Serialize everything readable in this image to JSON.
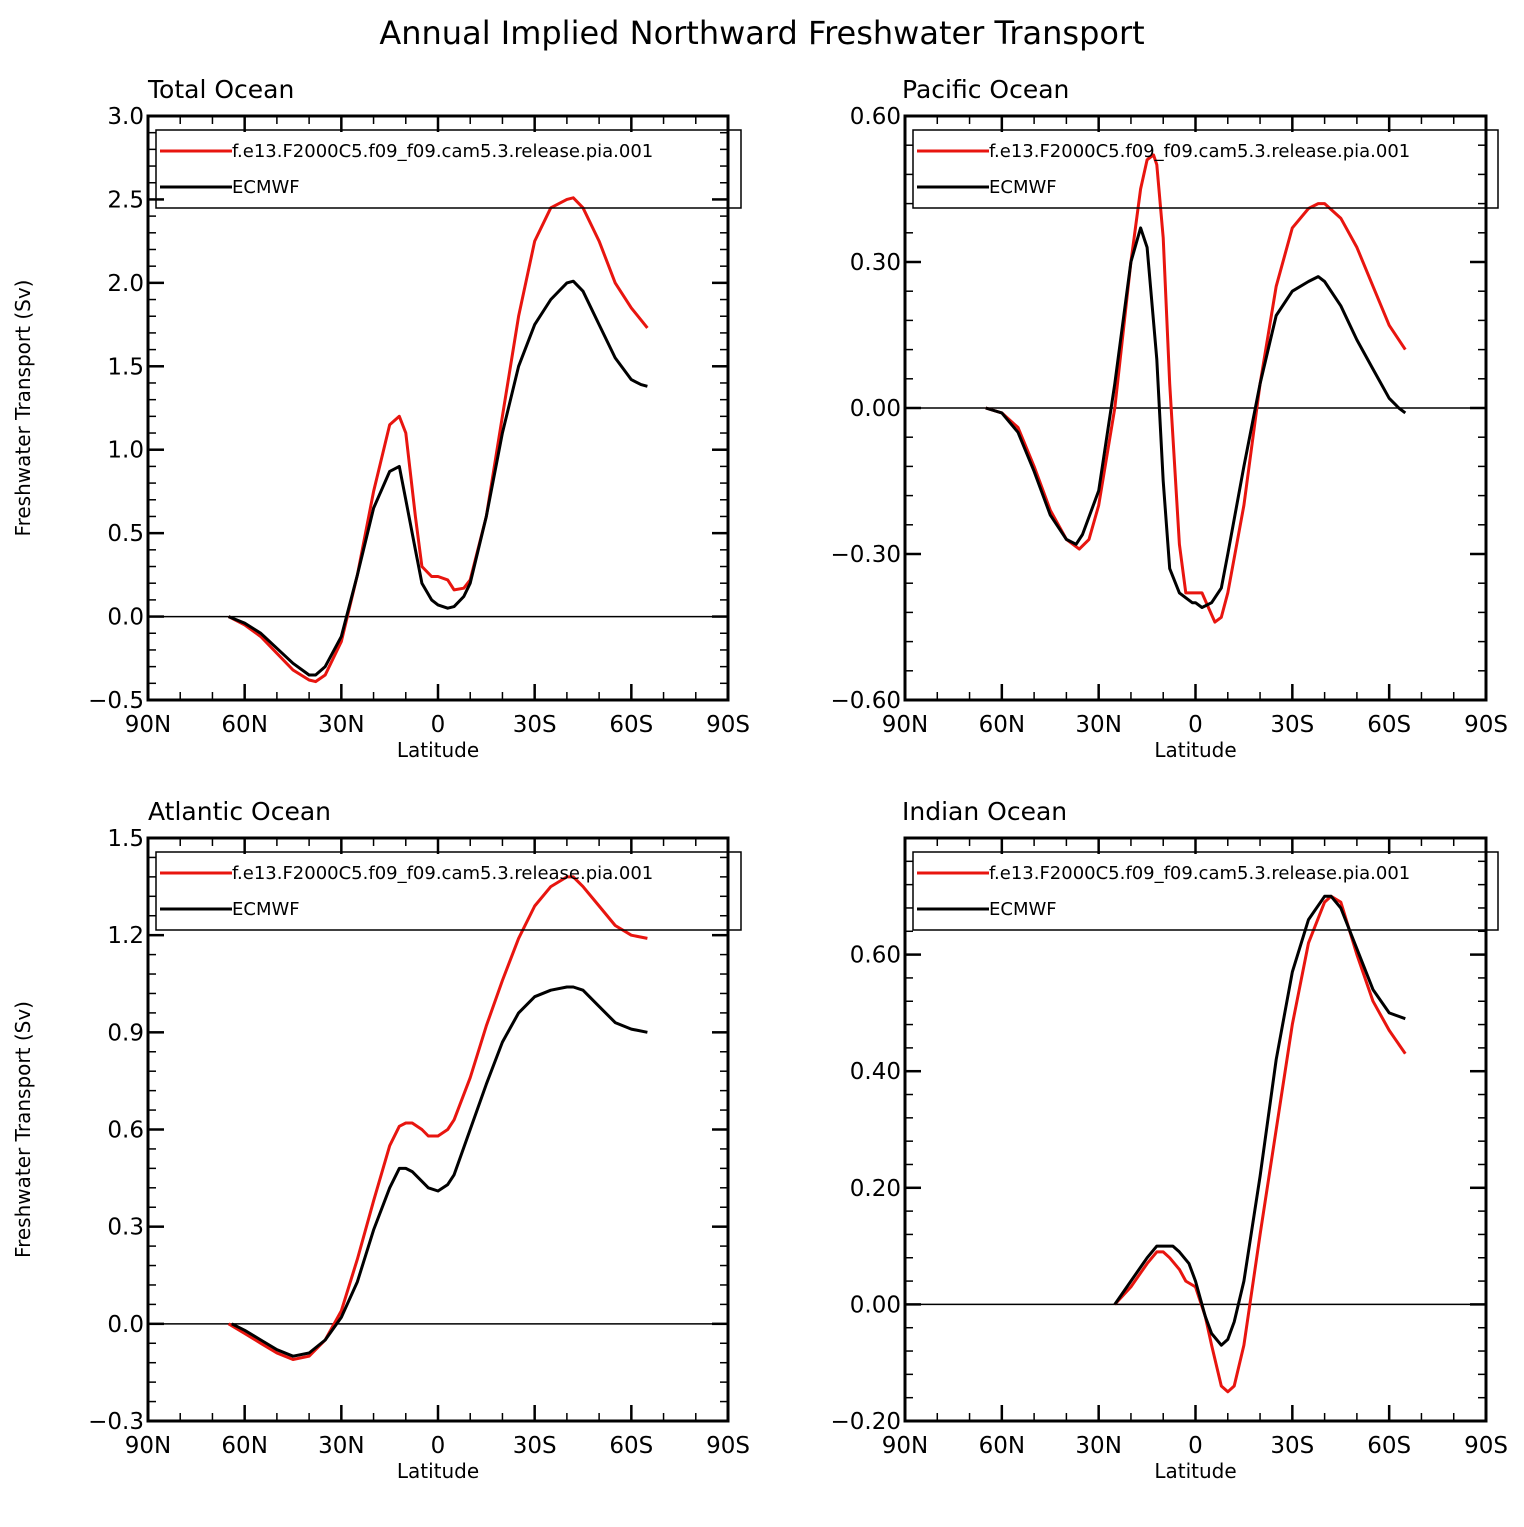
{
  "figure_title": "Annual Implied Northward Freshwater Transport",
  "colors": {
    "model": "#e8150f",
    "obs": "#000000"
  },
  "chart_data": [
    {
      "type": "line",
      "title": "Total Ocean",
      "xlabel": "Latitude",
      "ylabel": "Freshwater Transport (Sv)",
      "xlim": [
        90,
        -90
      ],
      "ylim": [
        -0.5,
        3.0
      ],
      "yticks": [
        -0.5,
        0.0,
        0.5,
        1.0,
        1.5,
        2.0,
        2.5,
        3.0
      ],
      "ytick_labels": [
        "−0.5",
        "0.0",
        "0.5",
        "1.0",
        "1.5",
        "2.0",
        "2.5",
        "3.0"
      ],
      "xticks": [
        90,
        60,
        30,
        0,
        -30,
        -60,
        -90
      ],
      "xtick_labels": [
        "90N",
        "60N",
        "30N",
        "0",
        "30S",
        "60S",
        "90S"
      ],
      "legend": [
        "f.e13.F2000C5.f09_f09.cam5.3.release.pia.001",
        "ECMWF"
      ],
      "series": [
        {
          "name": "f.e13.F2000C5.f09_f09.cam5.3.release.pia.001",
          "color": "#e8150f",
          "x": [
            65,
            60,
            55,
            50,
            45,
            40,
            38,
            35,
            30,
            25,
            20,
            15,
            12,
            10,
            7,
            5,
            2,
            0,
            -3,
            -5,
            -8,
            -10,
            -15,
            -20,
            -25,
            -30,
            -35,
            -40,
            -42,
            -45,
            -50,
            -55,
            -60,
            -65
          ],
          "y": [
            0.0,
            -0.05,
            -0.12,
            -0.22,
            -0.32,
            -0.38,
            -0.39,
            -0.35,
            -0.15,
            0.25,
            0.75,
            1.15,
            1.2,
            1.1,
            0.6,
            0.3,
            0.24,
            0.24,
            0.22,
            0.16,
            0.17,
            0.22,
            0.6,
            1.2,
            1.8,
            2.25,
            2.45,
            2.5,
            2.51,
            2.45,
            2.25,
            2.0,
            1.85,
            1.73
          ]
        },
        {
          "name": "ECMWF",
          "color": "#000000",
          "x": [
            65,
            60,
            55,
            50,
            45,
            40,
            38,
            35,
            30,
            25,
            20,
            15,
            12,
            10,
            7,
            5,
            2,
            0,
            -3,
            -5,
            -8,
            -10,
            -15,
            -20,
            -25,
            -30,
            -35,
            -40,
            -42,
            -45,
            -50,
            -55,
            -60,
            -63,
            -65
          ],
          "y": [
            0.0,
            -0.04,
            -0.1,
            -0.19,
            -0.28,
            -0.35,
            -0.35,
            -0.3,
            -0.12,
            0.25,
            0.65,
            0.87,
            0.9,
            0.7,
            0.4,
            0.2,
            0.1,
            0.07,
            0.05,
            0.06,
            0.12,
            0.2,
            0.6,
            1.1,
            1.5,
            1.75,
            1.9,
            2.0,
            2.01,
            1.95,
            1.75,
            1.55,
            1.42,
            1.39,
            1.38
          ]
        }
      ]
    },
    {
      "type": "line",
      "title": "Pacific Ocean",
      "xlabel": "Latitude",
      "ylabel": "",
      "xlim": [
        90,
        -90
      ],
      "ylim": [
        -0.6,
        0.6
      ],
      "yticks": [
        -0.6,
        -0.3,
        0.0,
        0.3,
        0.6
      ],
      "ytick_labels": [
        "−0.60",
        "−0.30",
        "0.00",
        "0.30",
        "0.60"
      ],
      "xticks": [
        90,
        60,
        30,
        0,
        -30,
        -60,
        -90
      ],
      "xtick_labels": [
        "90N",
        "60N",
        "30N",
        "0",
        "30S",
        "60S",
        "90S"
      ],
      "legend": [
        "f.e13.F2000C5.f09_f09.cam5.3.release.pia.001",
        "ECMWF"
      ],
      "series": [
        {
          "name": "f.e13.F2000C5.f09_f09.cam5.3.release.pia.001",
          "color": "#e8150f",
          "x": [
            65,
            60,
            55,
            50,
            45,
            40,
            36,
            33,
            30,
            25,
            20,
            17,
            15,
            13,
            12,
            10,
            8,
            5,
            3,
            1,
            0,
            -2,
            -4,
            -6,
            -8,
            -10,
            -15,
            -20,
            -25,
            -30,
            -35,
            -38,
            -40,
            -45,
            -50,
            -55,
            -60,
            -65
          ],
          "y": [
            0.0,
            -0.01,
            -0.04,
            -0.12,
            -0.21,
            -0.27,
            -0.29,
            -0.27,
            -0.2,
            0.0,
            0.3,
            0.45,
            0.51,
            0.52,
            0.5,
            0.35,
            0.05,
            -0.28,
            -0.38,
            -0.38,
            -0.38,
            -0.38,
            -0.41,
            -0.44,
            -0.43,
            -0.38,
            -0.2,
            0.05,
            0.25,
            0.37,
            0.41,
            0.42,
            0.42,
            0.39,
            0.33,
            0.25,
            0.17,
            0.12
          ]
        },
        {
          "name": "ECMWF",
          "color": "#000000",
          "x": [
            65,
            60,
            55,
            50,
            45,
            40,
            37,
            35,
            30,
            25,
            20,
            17,
            15,
            12,
            10,
            8,
            5,
            3,
            1,
            0,
            -2,
            -5,
            -8,
            -10,
            -15,
            -20,
            -25,
            -30,
            -35,
            -38,
            -40,
            -45,
            -50,
            -55,
            -60,
            -63,
            -65
          ],
          "y": [
            0.0,
            -0.01,
            -0.05,
            -0.13,
            -0.22,
            -0.27,
            -0.28,
            -0.26,
            -0.17,
            0.05,
            0.3,
            0.37,
            0.33,
            0.1,
            -0.15,
            -0.33,
            -0.38,
            -0.39,
            -0.4,
            -0.4,
            -0.41,
            -0.4,
            -0.37,
            -0.3,
            -0.12,
            0.05,
            0.19,
            0.24,
            0.26,
            0.27,
            0.26,
            0.21,
            0.14,
            0.08,
            0.02,
            0.0,
            -0.01
          ]
        }
      ]
    },
    {
      "type": "line",
      "title": "Atlantic Ocean",
      "xlabel": "Latitude",
      "ylabel": "Freshwater Transport (Sv)",
      "xlim": [
        90,
        -90
      ],
      "ylim": [
        -0.3,
        1.5
      ],
      "yticks": [
        -0.3,
        0.0,
        0.3,
        0.6,
        0.9,
        1.2,
        1.5
      ],
      "ytick_labels": [
        "−0.3",
        "0.0",
        "0.3",
        "0.6",
        "0.9",
        "1.2",
        "1.5"
      ],
      "xticks": [
        90,
        60,
        30,
        0,
        -30,
        -60,
        -90
      ],
      "xtick_labels": [
        "90N",
        "60N",
        "30N",
        "0",
        "30S",
        "60S",
        "90S"
      ],
      "legend": [
        "f.e13.F2000C5.f09_f09.cam5.3.release.pia.001",
        "ECMWF"
      ],
      "series": [
        {
          "name": "f.e13.F2000C5.f09_f09.cam5.3.release.pia.001",
          "color": "#e8150f",
          "x": [
            65,
            60,
            55,
            50,
            45,
            40,
            35,
            30,
            25,
            20,
            15,
            12,
            10,
            8,
            5,
            3,
            0,
            -3,
            -5,
            -10,
            -15,
            -20,
            -25,
            -30,
            -35,
            -40,
            -42,
            -45,
            -50,
            -55,
            -60,
            -65
          ],
          "y": [
            0.0,
            -0.03,
            -0.06,
            -0.09,
            -0.11,
            -0.1,
            -0.05,
            0.04,
            0.2,
            0.38,
            0.55,
            0.61,
            0.62,
            0.62,
            0.6,
            0.58,
            0.58,
            0.6,
            0.63,
            0.76,
            0.92,
            1.06,
            1.19,
            1.29,
            1.35,
            1.38,
            1.38,
            1.35,
            1.29,
            1.23,
            1.2,
            1.19
          ]
        },
        {
          "name": "ECMWF",
          "color": "#000000",
          "x": [
            64,
            60,
            55,
            50,
            45,
            40,
            35,
            30,
            25,
            20,
            15,
            12,
            10,
            8,
            5,
            3,
            0,
            -3,
            -5,
            -10,
            -15,
            -20,
            -25,
            -30,
            -35,
            -40,
            -42,
            -45,
            -50,
            -55,
            -60,
            -65
          ],
          "y": [
            0.0,
            -0.02,
            -0.05,
            -0.08,
            -0.1,
            -0.09,
            -0.05,
            0.02,
            0.13,
            0.29,
            0.42,
            0.48,
            0.48,
            0.47,
            0.44,
            0.42,
            0.41,
            0.43,
            0.46,
            0.6,
            0.74,
            0.87,
            0.96,
            1.01,
            1.03,
            1.04,
            1.04,
            1.03,
            0.98,
            0.93,
            0.91,
            0.9
          ]
        }
      ]
    },
    {
      "type": "line",
      "title": "Indian Ocean",
      "xlabel": "Latitude",
      "ylabel": "",
      "xlim": [
        90,
        -90
      ],
      "ylim": [
        -0.2,
        0.8
      ],
      "yticks": [
        -0.2,
        0.0,
        0.2,
        0.4,
        0.6
      ],
      "ytick_labels": [
        "−0.20",
        "0.00",
        "0.20",
        "0.40",
        "0.60"
      ],
      "xticks": [
        90,
        60,
        30,
        0,
        -30,
        -60,
        -90
      ],
      "xtick_labels": [
        "90N",
        "60N",
        "30N",
        "0",
        "30S",
        "60S",
        "90S"
      ],
      "legend": [
        "f.e13.F2000C5.f09_f09.cam5.3.release.pia.001",
        "ECMWF"
      ],
      "series": [
        {
          "name": "f.e13.F2000C5.f09_f09.cam5.3.release.pia.001",
          "color": "#e8150f",
          "x": [
            25,
            20,
            15,
            12,
            10,
            8,
            5,
            3,
            0,
            -3,
            -5,
            -8,
            -10,
            -12,
            -15,
            -20,
            -25,
            -30,
            -35,
            -40,
            -42,
            -45,
            -50,
            -55,
            -60,
            -65
          ],
          "y": [
            0.0,
            0.03,
            0.07,
            0.09,
            0.09,
            0.08,
            0.06,
            0.04,
            0.03,
            -0.02,
            -0.07,
            -0.14,
            -0.15,
            -0.14,
            -0.07,
            0.12,
            0.3,
            0.48,
            0.62,
            0.69,
            0.7,
            0.69,
            0.6,
            0.52,
            0.47,
            0.43
          ]
        },
        {
          "name": "ECMWF",
          "color": "#000000",
          "x": [
            25,
            20,
            15,
            12,
            10,
            7,
            5,
            2,
            0,
            -3,
            -5,
            -8,
            -10,
            -12,
            -15,
            -20,
            -25,
            -30,
            -35,
            -40,
            -42,
            -45,
            -50,
            -55,
            -60,
            -65
          ],
          "y": [
            0.0,
            0.04,
            0.08,
            0.1,
            0.1,
            0.1,
            0.09,
            0.07,
            0.04,
            -0.02,
            -0.05,
            -0.07,
            -0.06,
            -0.03,
            0.04,
            0.22,
            0.42,
            0.57,
            0.66,
            0.7,
            0.7,
            0.68,
            0.61,
            0.54,
            0.5,
            0.49
          ]
        }
      ]
    }
  ]
}
